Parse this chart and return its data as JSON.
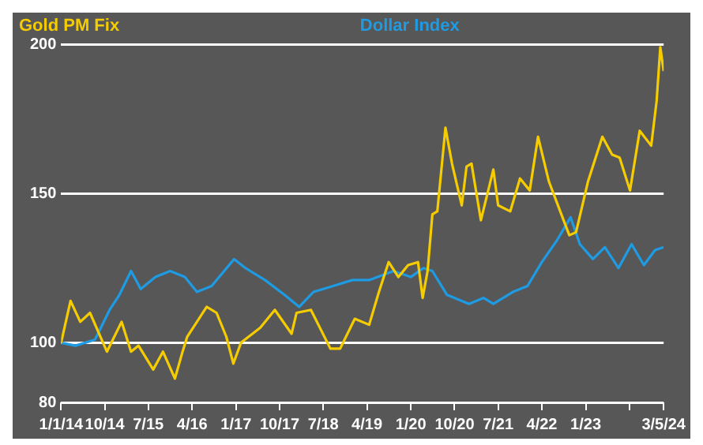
{
  "chart_data": {
    "type": "line",
    "legend": "top",
    "grid": "y",
    "ylim": [
      80,
      200
    ],
    "yticks": [
      80,
      100,
      150,
      200
    ],
    "xlim": [
      "2014-01-01",
      "2024-05-03"
    ],
    "xticks": [
      {
        "value": "2014-01-01",
        "label": "1/1/14"
      },
      {
        "value": "2014-10-01",
        "label": "10/14"
      },
      {
        "value": "2015-07-01",
        "label": "7/15"
      },
      {
        "value": "2016-04-01",
        "label": "4/16"
      },
      {
        "value": "2017-01-01",
        "label": "1/17"
      },
      {
        "value": "2017-10-01",
        "label": "10/17"
      },
      {
        "value": "2018-07-01",
        "label": "7/18"
      },
      {
        "value": "2019-04-01",
        "label": "4/19"
      },
      {
        "value": "2020-01-01",
        "label": "1/20"
      },
      {
        "value": "2020-10-01",
        "label": "10/20"
      },
      {
        "value": "2021-07-01",
        "label": "7/21"
      },
      {
        "value": "2022-04-01",
        "label": "4/22"
      },
      {
        "value": "2023-01-01",
        "label": "1/23"
      },
      {
        "value": "2023-10-01",
        "label": null
      },
      {
        "value": "2024-05-03",
        "label": "3/5/24"
      }
    ],
    "series": [
      {
        "name": "Gold PM Fix",
        "color": "#f5cc00",
        "x": [
          "2014-01-01",
          "2014-03-01",
          "2014-05-01",
          "2014-07-01",
          "2014-10-15",
          "2015-01-15",
          "2015-03-15",
          "2015-05-01",
          "2015-08-01",
          "2015-10-01",
          "2015-12-15",
          "2016-02-01",
          "2016-03-01",
          "2016-07-01",
          "2016-09-01",
          "2016-11-01",
          "2016-12-15",
          "2017-02-01",
          "2017-06-01",
          "2017-09-01",
          "2017-12-15",
          "2018-01-15",
          "2018-04-15",
          "2018-08-15",
          "2018-10-15",
          "2019-01-15",
          "2019-04-15",
          "2019-06-15",
          "2019-08-15",
          "2019-10-15",
          "2019-12-15",
          "2020-02-15",
          "2020-03-15",
          "2020-04-15",
          "2020-05-15",
          "2020-06-15",
          "2020-08-05",
          "2020-09-15",
          "2020-11-15",
          "2020-12-15",
          "2021-01-15",
          "2021-03-15",
          "2021-06-01",
          "2021-07-01",
          "2021-09-15",
          "2021-11-15",
          "2022-01-15",
          "2022-03-08",
          "2022-05-15",
          "2022-08-01",
          "2022-09-20",
          "2022-11-01",
          "2023-01-15",
          "2023-04-15",
          "2023-06-15",
          "2023-08-01",
          "2023-10-05",
          "2023-12-05",
          "2024-02-15",
          "2024-03-20",
          "2024-04-12",
          "2024-05-03"
        ],
        "values": [
          100,
          114,
          107,
          110,
          97,
          107,
          97,
          99,
          91,
          97,
          88,
          97,
          102,
          112,
          110,
          102,
          93,
          100,
          105,
          111,
          103,
          110,
          111,
          98,
          98,
          108,
          106,
          117,
          127,
          122,
          126,
          127,
          115,
          124,
          143,
          144,
          172,
          160,
          146,
          159,
          160,
          141,
          158,
          146,
          144,
          155,
          151,
          169,
          154,
          143,
          136,
          137,
          154,
          169,
          163,
          162,
          151,
          171,
          166,
          181,
          199,
          191
        ]
      },
      {
        "name": "Dollar Index",
        "color": "#1e9be3",
        "x": [
          "2014-01-01",
          "2014-04-01",
          "2014-08-01",
          "2014-11-01",
          "2015-01-01",
          "2015-03-15",
          "2015-05-15",
          "2015-08-15",
          "2015-11-15",
          "2016-02-15",
          "2016-05-01",
          "2016-08-01",
          "2016-12-20",
          "2017-03-01",
          "2017-07-01",
          "2017-11-01",
          "2018-02-01",
          "2018-05-01",
          "2018-09-01",
          "2019-01-01",
          "2019-04-15",
          "2019-09-15",
          "2020-01-01",
          "2020-03-20",
          "2020-05-15",
          "2020-08-15",
          "2020-12-31",
          "2021-04-01",
          "2021-06-01",
          "2021-10-01",
          "2022-01-01",
          "2022-04-01",
          "2022-07-01",
          "2022-09-28",
          "2022-11-25",
          "2023-02-15",
          "2023-05-01",
          "2023-07-25",
          "2023-10-15",
          "2023-12-31",
          "2024-03-10",
          "2024-05-03"
        ],
        "values": [
          100,
          99,
          101,
          111,
          116,
          124,
          118,
          122,
          124,
          122,
          117,
          119,
          128,
          125,
          121,
          116,
          112,
          117,
          119,
          121,
          121,
          124,
          122,
          125,
          124,
          116,
          113,
          115,
          113,
          117,
          119,
          127,
          134,
          142,
          133,
          128,
          132,
          125,
          133,
          126,
          131,
          132
        ]
      }
    ]
  }
}
